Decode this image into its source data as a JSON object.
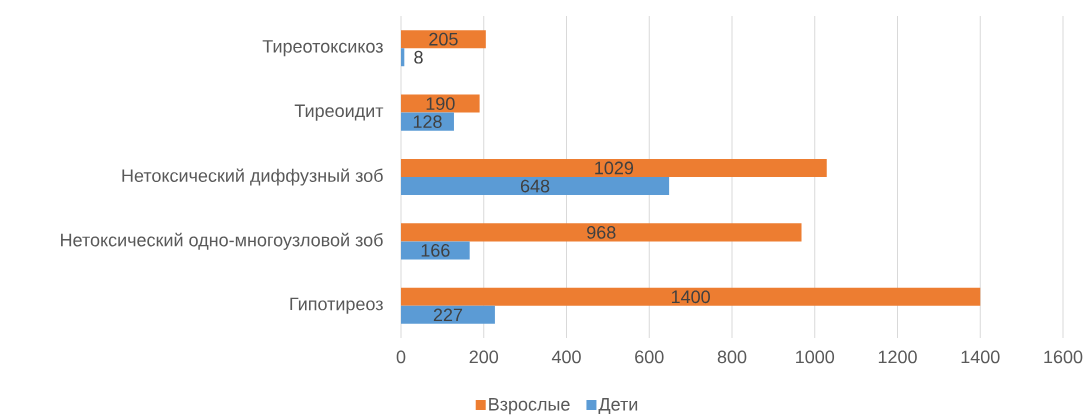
{
  "chart_data": {
    "type": "bar",
    "orientation": "horizontal",
    "categories": [
      "Тиреотоксикоз",
      "Тиреоидит",
      "Нетоксический диффузный зоб",
      "Нетоксический одно-многоузловой зоб",
      "Гипотиреоз"
    ],
    "series": [
      {
        "name": "Взрослые",
        "color": "#ed7d31",
        "values": [
          205,
          190,
          1029,
          968,
          1400
        ]
      },
      {
        "name": "Дети",
        "color": "#5b9bd5",
        "values": [
          8,
          128,
          648,
          166,
          227
        ]
      }
    ],
    "xlim": [
      0,
      1600
    ],
    "xticks": [
      0,
      200,
      400,
      600,
      800,
      1000,
      1200,
      1400,
      1600
    ],
    "grid": "x",
    "legend": "bottom",
    "data_labels": true
  }
}
